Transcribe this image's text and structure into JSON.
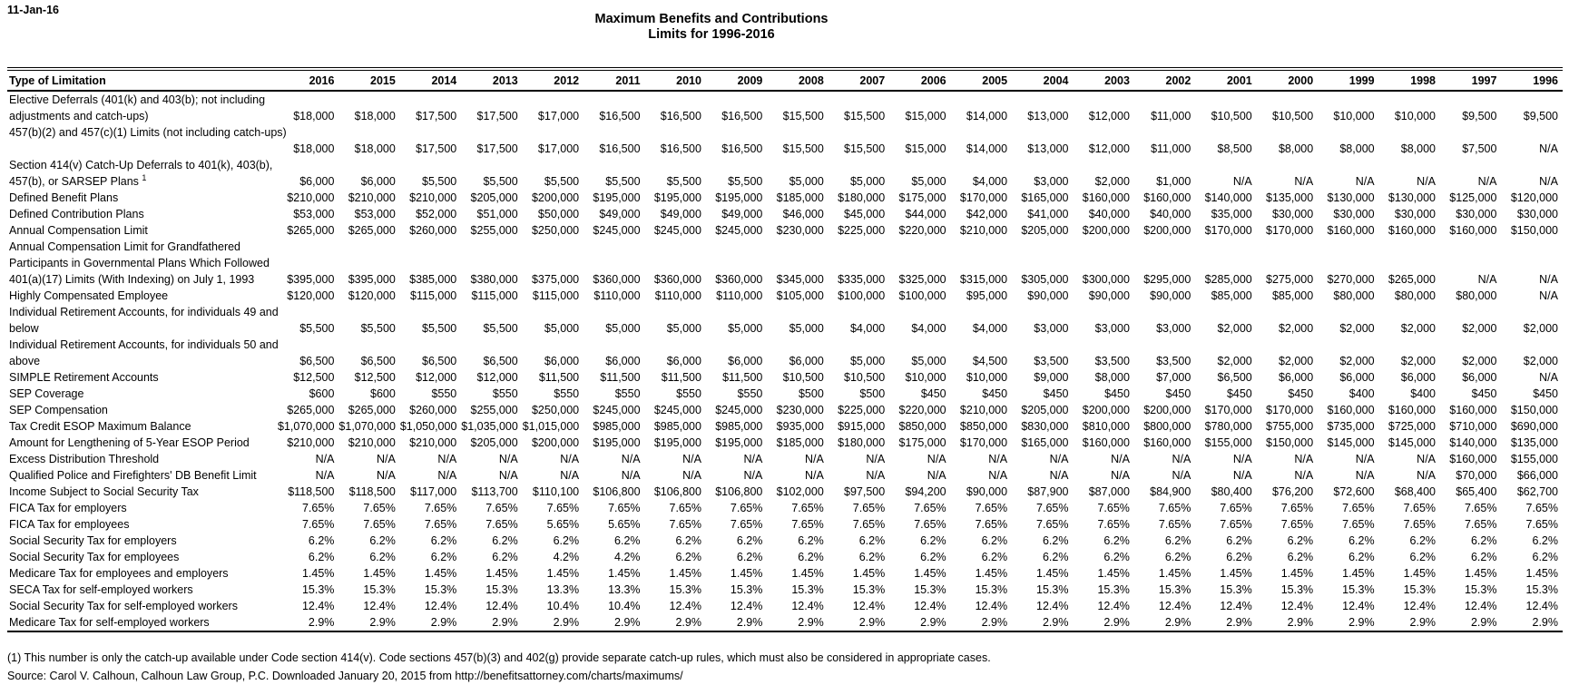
{
  "page": {
    "date": "11-Jan-16"
  },
  "title": {
    "line1": "Maximum Benefits and Contributions",
    "line2": "Limits for 1996-2016"
  },
  "table": {
    "label_header": "Type of Limitation",
    "years": [
      "2016",
      "2015",
      "2014",
      "2013",
      "2012",
      "2011",
      "2010",
      "2009",
      "2008",
      "2007",
      "2006",
      "2005",
      "2004",
      "2003",
      "2002",
      "2001",
      "2000",
      "1999",
      "1998",
      "1997",
      "1996"
    ],
    "rows": [
      {
        "label_lines": [
          "Elective Deferrals (401(k) and 403(b); not including",
          "adjustments and catch-ups)"
        ],
        "values": [
          "$18,000",
          "$18,000",
          "$17,500",
          "$17,500",
          "$17,000",
          "$16,500",
          "$16,500",
          "$16,500",
          "$15,500",
          "$15,500",
          "$15,000",
          "$14,000",
          "$13,000",
          "$12,000",
          "$11,000",
          "$10,500",
          "$10,500",
          "$10,000",
          "$10,000",
          "$9,500",
          "$9,500"
        ]
      },
      {
        "label_lines": [
          "457(b)(2) and 457(c)(1) Limits (not including catch-ups)",
          ""
        ],
        "values": [
          "$18,000",
          "$18,000",
          "$17,500",
          "$17,500",
          "$17,000",
          "$16,500",
          "$16,500",
          "$16,500",
          "$15,500",
          "$15,500",
          "$15,000",
          "$14,000",
          "$13,000",
          "$12,000",
          "$11,000",
          "$8,500",
          "$8,000",
          "$8,000",
          "$8,000",
          "$7,500",
          "N/A"
        ]
      },
      {
        "label_lines": [
          "Section 414(v) Catch-Up Deferrals to 401(k), 403(b),",
          "457(b), or SARSEP Plans "
        ],
        "sup": "1",
        "values": [
          "$6,000",
          "$6,000",
          "$5,500",
          "$5,500",
          "$5,500",
          "$5,500",
          "$5,500",
          "$5,500",
          "$5,000",
          "$5,000",
          "$5,000",
          "$4,000",
          "$3,000",
          "$2,000",
          "$1,000",
          "N/A",
          "N/A",
          "N/A",
          "N/A",
          "N/A",
          "N/A"
        ]
      },
      {
        "label_lines": [
          "Defined Benefit Plans"
        ],
        "values": [
          "$210,000",
          "$210,000",
          "$210,000",
          "$205,000",
          "$200,000",
          "$195,000",
          "$195,000",
          "$195,000",
          "$185,000",
          "$180,000",
          "$175,000",
          "$170,000",
          "$165,000",
          "$160,000",
          "$160,000",
          "$140,000",
          "$135,000",
          "$130,000",
          "$130,000",
          "$125,000",
          "$120,000"
        ]
      },
      {
        "label_lines": [
          "Defined Contribution Plans"
        ],
        "values": [
          "$53,000",
          "$53,000",
          "$52,000",
          "$51,000",
          "$50,000",
          "$49,000",
          "$49,000",
          "$49,000",
          "$46,000",
          "$45,000",
          "$44,000",
          "$42,000",
          "$41,000",
          "$40,000",
          "$40,000",
          "$35,000",
          "$30,000",
          "$30,000",
          "$30,000",
          "$30,000",
          "$30,000"
        ]
      },
      {
        "label_lines": [
          "Annual Compensation Limit"
        ],
        "values": [
          "$265,000",
          "$265,000",
          "$260,000",
          "$255,000",
          "$250,000",
          "$245,000",
          "$245,000",
          "$245,000",
          "$230,000",
          "$225,000",
          "$220,000",
          "$210,000",
          "$205,000",
          "$200,000",
          "$200,000",
          "$170,000",
          "$170,000",
          "$160,000",
          "$160,000",
          "$160,000",
          "$150,000"
        ]
      },
      {
        "label_lines": [
          "Annual Compensation Limit for Grandfathered",
          "Participants in Governmental Plans Which Followed",
          "401(a)(17) Limits (With Indexing) on July 1, 1993"
        ],
        "values": [
          "$395,000",
          "$395,000",
          "$385,000",
          "$380,000",
          "$375,000",
          "$360,000",
          "$360,000",
          "$360,000",
          "$345,000",
          "$335,000",
          "$325,000",
          "$315,000",
          "$305,000",
          "$300,000",
          "$295,000",
          "$285,000",
          "$275,000",
          "$270,000",
          "$265,000",
          "N/A",
          "N/A"
        ]
      },
      {
        "label_lines": [
          "Highly Compensated Employee"
        ],
        "values": [
          "$120,000",
          "$120,000",
          "$115,000",
          "$115,000",
          "$115,000",
          "$110,000",
          "$110,000",
          "$110,000",
          "$105,000",
          "$100,000",
          "$100,000",
          "$95,000",
          "$90,000",
          "$90,000",
          "$90,000",
          "$85,000",
          "$85,000",
          "$80,000",
          "$80,000",
          "$80,000",
          "N/A"
        ]
      },
      {
        "label_lines": [
          "Individual Retirement Accounts, for individuals 49 and",
          "below"
        ],
        "values": [
          "$5,500",
          "$5,500",
          "$5,500",
          "$5,500",
          "$5,000",
          "$5,000",
          "$5,000",
          "$5,000",
          "$5,000",
          "$4,000",
          "$4,000",
          "$4,000",
          "$3,000",
          "$3,000",
          "$3,000",
          "$2,000",
          "$2,000",
          "$2,000",
          "$2,000",
          "$2,000",
          "$2,000"
        ]
      },
      {
        "label_lines": [
          "Individual Retirement Accounts, for individuals 50 and",
          "above"
        ],
        "values": [
          "$6,500",
          "$6,500",
          "$6,500",
          "$6,500",
          "$6,000",
          "$6,000",
          "$6,000",
          "$6,000",
          "$6,000",
          "$5,000",
          "$5,000",
          "$4,500",
          "$3,500",
          "$3,500",
          "$3,500",
          "$2,000",
          "$2,000",
          "$2,000",
          "$2,000",
          "$2,000",
          "$2,000"
        ]
      },
      {
        "label_lines": [
          "SIMPLE Retirement Accounts"
        ],
        "values": [
          "$12,500",
          "$12,500",
          "$12,000",
          "$12,000",
          "$11,500",
          "$11,500",
          "$11,500",
          "$11,500",
          "$10,500",
          "$10,500",
          "$10,000",
          "$10,000",
          "$9,000",
          "$8,000",
          "$7,000",
          "$6,500",
          "$6,000",
          "$6,000",
          "$6,000",
          "$6,000",
          "N/A"
        ]
      },
      {
        "label_lines": [
          "SEP Coverage"
        ],
        "values": [
          "$600",
          "$600",
          "$550",
          "$550",
          "$550",
          "$550",
          "$550",
          "$550",
          "$500",
          "$500",
          "$450",
          "$450",
          "$450",
          "$450",
          "$450",
          "$450",
          "$450",
          "$400",
          "$400",
          "$450",
          "$450"
        ]
      },
      {
        "label_lines": [
          "SEP Compensation"
        ],
        "values": [
          "$265,000",
          "$265,000",
          "$260,000",
          "$255,000",
          "$250,000",
          "$245,000",
          "$245,000",
          "$245,000",
          "$230,000",
          "$225,000",
          "$220,000",
          "$210,000",
          "$205,000",
          "$200,000",
          "$200,000",
          "$170,000",
          "$170,000",
          "$160,000",
          "$160,000",
          "$160,000",
          "$150,000"
        ]
      },
      {
        "label_lines": [
          "Tax Credit ESOP Maximum Balance"
        ],
        "values": [
          "$1,070,000",
          "$1,070,000",
          "$1,050,000",
          "$1,035,000",
          "$1,015,000",
          "$985,000",
          "$985,000",
          "$985,000",
          "$935,000",
          "$915,000",
          "$850,000",
          "$850,000",
          "$830,000",
          "$810,000",
          "$800,000",
          "$780,000",
          "$755,000",
          "$735,000",
          "$725,000",
          "$710,000",
          "$690,000"
        ]
      },
      {
        "label_lines": [
          "Amount for Lengthening of 5-Year ESOP Period"
        ],
        "values": [
          "$210,000",
          "$210,000",
          "$210,000",
          "$205,000",
          "$200,000",
          "$195,000",
          "$195,000",
          "$195,000",
          "$185,000",
          "$180,000",
          "$175,000",
          "$170,000",
          "$165,000",
          "$160,000",
          "$160,000",
          "$155,000",
          "$150,000",
          "$145,000",
          "$145,000",
          "$140,000",
          "$135,000"
        ]
      },
      {
        "label_lines": [
          "Excess Distribution Threshold"
        ],
        "values": [
          "N/A",
          "N/A",
          "N/A",
          "N/A",
          "N/A",
          "N/A",
          "N/A",
          "N/A",
          "N/A",
          "N/A",
          "N/A",
          "N/A",
          "N/A",
          "N/A",
          "N/A",
          "N/A",
          "N/A",
          "N/A",
          "N/A",
          "$160,000",
          "$155,000"
        ]
      },
      {
        "label_lines": [
          "Qualified Police and Firefighters' DB Benefit Limit"
        ],
        "values": [
          "N/A",
          "N/A",
          "N/A",
          "N/A",
          "N/A",
          "N/A",
          "N/A",
          "N/A",
          "N/A",
          "N/A",
          "N/A",
          "N/A",
          "N/A",
          "N/A",
          "N/A",
          "N/A",
          "N/A",
          "N/A",
          "N/A",
          "$70,000",
          "$66,000"
        ]
      },
      {
        "label_lines": [
          "Income Subject to Social Security Tax"
        ],
        "values": [
          "$118,500",
          "$118,500",
          "$117,000",
          "$113,700",
          "$110,100",
          "$106,800",
          "$106,800",
          "$106,800",
          "$102,000",
          "$97,500",
          "$94,200",
          "$90,000",
          "$87,900",
          "$87,000",
          "$84,900",
          "$80,400",
          "$76,200",
          "$72,600",
          "$68,400",
          "$65,400",
          "$62,700"
        ]
      },
      {
        "label_lines": [
          "FICA Tax for employers"
        ],
        "values": [
          "7.65%",
          "7.65%",
          "7.65%",
          "7.65%",
          "7.65%",
          "7.65%",
          "7.65%",
          "7.65%",
          "7.65%",
          "7.65%",
          "7.65%",
          "7.65%",
          "7.65%",
          "7.65%",
          "7.65%",
          "7.65%",
          "7.65%",
          "7.65%",
          "7.65%",
          "7.65%",
          "7.65%"
        ]
      },
      {
        "label_lines": [
          "FICA Tax for employees"
        ],
        "values": [
          "7.65%",
          "7.65%",
          "7.65%",
          "7.65%",
          "5.65%",
          "5.65%",
          "7.65%",
          "7.65%",
          "7.65%",
          "7.65%",
          "7.65%",
          "7.65%",
          "7.65%",
          "7.65%",
          "7.65%",
          "7.65%",
          "7.65%",
          "7.65%",
          "7.65%",
          "7.65%",
          "7.65%"
        ]
      },
      {
        "label_lines": [
          "Social Security Tax for employers"
        ],
        "values": [
          "6.2%",
          "6.2%",
          "6.2%",
          "6.2%",
          "6.2%",
          "6.2%",
          "6.2%",
          "6.2%",
          "6.2%",
          "6.2%",
          "6.2%",
          "6.2%",
          "6.2%",
          "6.2%",
          "6.2%",
          "6.2%",
          "6.2%",
          "6.2%",
          "6.2%",
          "6.2%",
          "6.2%"
        ]
      },
      {
        "label_lines": [
          "Social Security Tax for employees"
        ],
        "values": [
          "6.2%",
          "6.2%",
          "6.2%",
          "6.2%",
          "4.2%",
          "4.2%",
          "6.2%",
          "6.2%",
          "6.2%",
          "6.2%",
          "6.2%",
          "6.2%",
          "6.2%",
          "6.2%",
          "6.2%",
          "6.2%",
          "6.2%",
          "6.2%",
          "6.2%",
          "6.2%",
          "6.2%"
        ]
      },
      {
        "label_lines": [
          "Medicare Tax for employees and employers"
        ],
        "values": [
          "1.45%",
          "1.45%",
          "1.45%",
          "1.45%",
          "1.45%",
          "1.45%",
          "1.45%",
          "1.45%",
          "1.45%",
          "1.45%",
          "1.45%",
          "1.45%",
          "1.45%",
          "1.45%",
          "1.45%",
          "1.45%",
          "1.45%",
          "1.45%",
          "1.45%",
          "1.45%",
          "1.45%"
        ]
      },
      {
        "label_lines": [
          "SECA Tax for self-employed workers"
        ],
        "values": [
          "15.3%",
          "15.3%",
          "15.3%",
          "15.3%",
          "13.3%",
          "13.3%",
          "15.3%",
          "15.3%",
          "15.3%",
          "15.3%",
          "15.3%",
          "15.3%",
          "15.3%",
          "15.3%",
          "15.3%",
          "15.3%",
          "15.3%",
          "15.3%",
          "15.3%",
          "15.3%",
          "15.3%"
        ]
      },
      {
        "label_lines": [
          "Social Security Tax for self-employed workers"
        ],
        "values": [
          "12.4%",
          "12.4%",
          "12.4%",
          "12.4%",
          "10.4%",
          "10.4%",
          "12.4%",
          "12.4%",
          "12.4%",
          "12.4%",
          "12.4%",
          "12.4%",
          "12.4%",
          "12.4%",
          "12.4%",
          "12.4%",
          "12.4%",
          "12.4%",
          "12.4%",
          "12.4%",
          "12.4%"
        ]
      },
      {
        "label_lines": [
          "Medicare Tax for self-employed workers"
        ],
        "values": [
          "2.9%",
          "2.9%",
          "2.9%",
          "2.9%",
          "2.9%",
          "2.9%",
          "2.9%",
          "2.9%",
          "2.9%",
          "2.9%",
          "2.9%",
          "2.9%",
          "2.9%",
          "2.9%",
          "2.9%",
          "2.9%",
          "2.9%",
          "2.9%",
          "2.9%",
          "2.9%",
          "2.9%"
        ]
      }
    ]
  },
  "footnotes": {
    "note1": "(1) This number is only the catch-up available under Code section 414(v). Code sections 457(b)(3) and 402(g) provide separate catch-up rules, which must also be considered in appropriate cases.",
    "source": "Source: Carol V. Calhoun, Calhoun Law Group, P.C.  Downloaded January 20, 2015 from http://benefitsattorney.com/charts/maximums/"
  }
}
